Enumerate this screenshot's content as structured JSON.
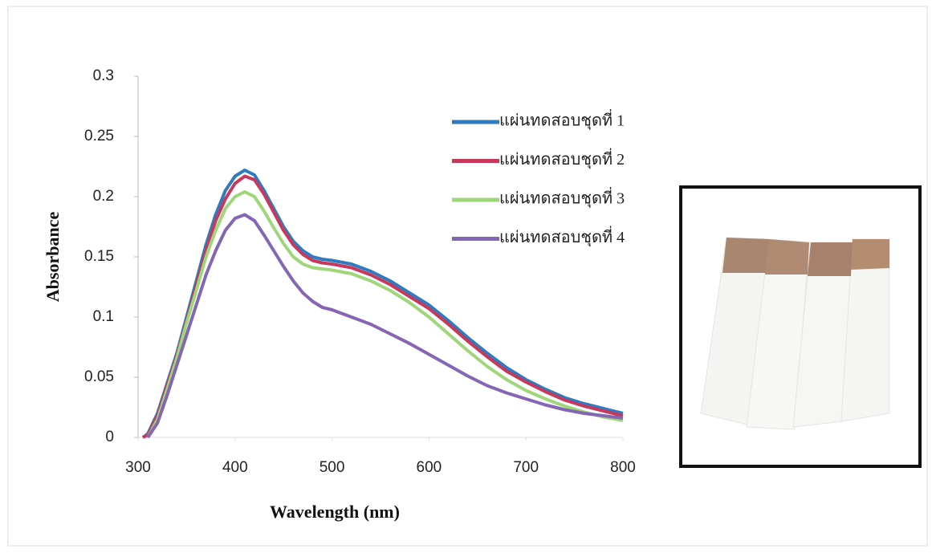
{
  "chart_data": {
    "type": "line",
    "x_label": "Wavelength (nm)",
    "y_label": "Absorbance",
    "x": [
      305,
      310,
      320,
      330,
      340,
      350,
      360,
      370,
      380,
      390,
      400,
      410,
      420,
      430,
      440,
      450,
      460,
      470,
      480,
      490,
      500,
      520,
      540,
      560,
      580,
      600,
      620,
      640,
      660,
      680,
      700,
      720,
      740,
      760,
      780,
      800
    ],
    "series": [
      {
        "name": "แผ่นทดสอบชุดที่ 1",
        "color": "#2e7bbf",
        "values": [
          0,
          0.003,
          0.02,
          0.045,
          0.07,
          0.1,
          0.13,
          0.16,
          0.185,
          0.205,
          0.217,
          0.222,
          0.218,
          0.205,
          0.19,
          0.175,
          0.163,
          0.155,
          0.15,
          0.148,
          0.147,
          0.144,
          0.138,
          0.13,
          0.12,
          0.11,
          0.097,
          0.083,
          0.07,
          0.058,
          0.048,
          0.04,
          0.033,
          0.028,
          0.024,
          0.02
        ]
      },
      {
        "name": "แผ่นทดสอบชุดที่ 2",
        "color": "#c8385a",
        "values": [
          0,
          0.002,
          0.018,
          0.043,
          0.068,
          0.097,
          0.126,
          0.155,
          0.18,
          0.198,
          0.211,
          0.217,
          0.214,
          0.202,
          0.187,
          0.172,
          0.16,
          0.152,
          0.147,
          0.145,
          0.144,
          0.141,
          0.135,
          0.127,
          0.117,
          0.107,
          0.094,
          0.08,
          0.067,
          0.055,
          0.046,
          0.038,
          0.031,
          0.026,
          0.022,
          0.018
        ]
      },
      {
        "name": "แผ่นทดสอบชุดที่ 3",
        "color": "#9ed67a",
        "values": [
          null,
          0,
          0.015,
          0.04,
          0.066,
          0.095,
          0.122,
          0.15,
          0.172,
          0.19,
          0.2,
          0.204,
          0.2,
          0.188,
          0.174,
          0.161,
          0.15,
          0.144,
          0.141,
          0.14,
          0.139,
          0.136,
          0.13,
          0.122,
          0.112,
          0.1,
          0.086,
          0.072,
          0.059,
          0.048,
          0.039,
          0.032,
          0.026,
          0.021,
          0.017,
          0.014
        ]
      },
      {
        "name": "แผ่นทดสอบชุดที่ 4",
        "color": "#8466b4",
        "values": [
          null,
          0,
          0.012,
          0.035,
          0.06,
          0.085,
          0.11,
          0.135,
          0.155,
          0.172,
          0.182,
          0.185,
          0.18,
          0.168,
          0.155,
          0.142,
          0.13,
          0.12,
          0.113,
          0.108,
          0.106,
          0.1,
          0.094,
          0.086,
          0.078,
          0.069,
          0.06,
          0.051,
          0.043,
          0.037,
          0.032,
          0.027,
          0.023,
          0.02,
          0.018,
          0.016
        ]
      }
    ],
    "xlim": [
      300,
      800
    ],
    "xticks": [
      300,
      400,
      500,
      600,
      700,
      800
    ],
    "ylim": [
      0,
      0.3
    ],
    "yticks": [
      0,
      0.05,
      0.1,
      0.15,
      0.2,
      0.25,
      0.3
    ],
    "grid": false,
    "legend": "top-right"
  }
}
